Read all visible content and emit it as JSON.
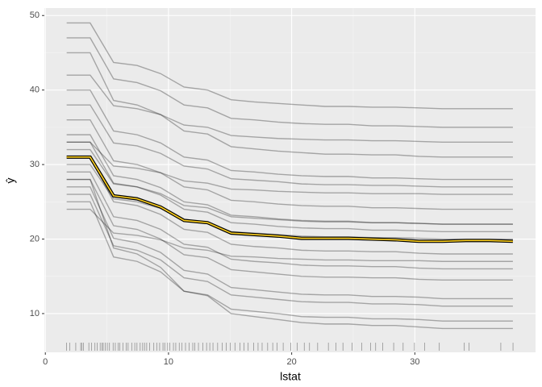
{
  "chart_data": {
    "type": "line",
    "x_label": "lstat",
    "y_label": "ŷ",
    "xlim": [
      -0.08,
      39.8
    ],
    "ylim": [
      4.8,
      51
    ],
    "xticks": [
      0,
      10,
      20,
      30
    ],
    "yticks": [
      10,
      20,
      30,
      40,
      50
    ],
    "grid": true,
    "line_color": "#000000",
    "x": [
      1.73,
      3.64,
      5.54,
      7.45,
      9.36,
      11.26,
      13.17,
      15.08,
      16.98,
      18.89,
      20.8,
      22.71,
      24.61,
      26.52,
      28.43,
      30.33,
      32.24,
      34.15,
      36.05,
      37.96
    ],
    "series": [
      {
        "values": [
          49,
          49,
          43.7,
          43.3,
          42.2,
          40.4,
          40.0,
          38.7,
          38.4,
          38.2,
          38.0,
          37.8,
          37.8,
          37.7,
          37.7,
          37.6,
          37.5,
          37.5,
          37.5,
          37.5
        ]
      },
      {
        "values": [
          47,
          47,
          41.5,
          41,
          39.9,
          38,
          37.6,
          36.2,
          36,
          35.7,
          35.5,
          35.4,
          35.4,
          35.2,
          35.2,
          35.1,
          35,
          35,
          35,
          35
        ]
      },
      {
        "values": [
          45,
          45,
          38.6,
          38,
          36.7,
          34.5,
          34.1,
          32.4,
          32.1,
          31.8,
          31.6,
          31.4,
          31.4,
          31.3,
          31.3,
          31.1,
          31,
          31,
          31,
          31
        ]
      },
      {
        "values": [
          42,
          42,
          37.9,
          37.5,
          36.7,
          35.3,
          35,
          33.9,
          33.7,
          33.5,
          33.4,
          33.3,
          33.3,
          33.2,
          33.2,
          33.1,
          33,
          33,
          33,
          33
        ]
      },
      {
        "values": [
          40,
          40,
          34.5,
          34,
          32.9,
          31,
          30.6,
          29.2,
          29,
          28.7,
          28.5,
          28.4,
          28.4,
          28.2,
          28.2,
          28.1,
          28,
          28,
          28,
          28
        ]
      },
      {
        "values": [
          38,
          38,
          32.9,
          32.5,
          31.5,
          29.8,
          29.4,
          28.1,
          27.9,
          27.7,
          27.4,
          27.3,
          27.3,
          27.2,
          27.2,
          27.1,
          27,
          27,
          27,
          27
        ]
      },
      {
        "values": [
          36,
          36,
          30.5,
          30,
          28.9,
          27,
          26.6,
          25.2,
          25,
          24.7,
          24.5,
          24.4,
          24.4,
          24.2,
          24.2,
          24.1,
          24,
          24,
          24,
          24
        ]
      },
      {
        "values": [
          34,
          34,
          28.5,
          28,
          26.9,
          25,
          24.6,
          23.2,
          23,
          22.7,
          22.5,
          22.4,
          22.4,
          22.2,
          22.2,
          22.1,
          22,
          22,
          22,
          22
        ]
      },
      {
        "values": [
          33,
          33,
          27.5,
          27,
          25.9,
          24,
          23.6,
          22.2,
          22,
          21.7,
          21.5,
          21.4,
          21.4,
          21.2,
          21.2,
          21.1,
          21,
          21,
          21,
          21
        ]
      },
      {
        "values": [
          32,
          32,
          27.4,
          27,
          26.1,
          24.5,
          24.2,
          23,
          22.8,
          22.6,
          22.4,
          22.3,
          22.3,
          22.2,
          22.2,
          22.1,
          22,
          22,
          22,
          22
        ]
      },
      {
        "values": [
          31,
          31,
          25,
          24.5,
          23.3,
          21.3,
          20.9,
          19.3,
          19,
          18.8,
          18.5,
          18.4,
          18.4,
          18.3,
          18.3,
          18.1,
          18,
          18,
          18,
          18
        ]
      },
      {
        "values": [
          30,
          30,
          25.4,
          25,
          24.1,
          22.5,
          22.2,
          21,
          20.8,
          20.6,
          20.4,
          20.3,
          20.3,
          20.2,
          20.2,
          20.1,
          20,
          20,
          20,
          20
        ]
      },
      {
        "values": [
          29,
          29,
          23,
          22.5,
          21.3,
          19.3,
          18.9,
          17.3,
          17,
          16.8,
          16.5,
          16.4,
          16.4,
          16.3,
          16.3,
          16.1,
          16,
          16,
          16,
          16
        ]
      },
      {
        "values": [
          28,
          28,
          21.8,
          21.3,
          20,
          17.9,
          17.5,
          15.9,
          15.6,
          15.3,
          15,
          14.9,
          14.9,
          14.8,
          14.8,
          14.6,
          14.5,
          14.5,
          14.5,
          14.5
        ]
      },
      {
        "values": [
          27,
          27,
          20.1,
          19.5,
          18.2,
          15.8,
          15.3,
          13.5,
          13.2,
          12.9,
          12.6,
          12.5,
          12.5,
          12.3,
          12.3,
          12.2,
          12,
          12,
          12,
          12
        ]
      },
      {
        "values": [
          26,
          26,
          19.1,
          18.5,
          17.2,
          14.8,
          14.3,
          12.5,
          12.2,
          11.9,
          11.6,
          11.5,
          11.5,
          11.3,
          11.3,
          11.2,
          11,
          11,
          11,
          11
        ]
      },
      {
        "values": [
          25,
          25,
          17.6,
          17,
          15.6,
          13,
          12.5,
          10.6,
          10.3,
          10,
          9.6,
          9.5,
          9.5,
          9.3,
          9.3,
          9.2,
          9,
          9,
          9,
          9
        ]
      },
      {
        "values": [
          28,
          28,
          18.8,
          18,
          16.2,
          13,
          12.4,
          10,
          9.6,
          9.2,
          8.8,
          8.6,
          8.6,
          8.4,
          8.4,
          8.2,
          8,
          8,
          8,
          8
        ]
      },
      {
        "values": [
          24,
          24,
          20.8,
          20.5,
          19.9,
          18.8,
          18.5,
          17.7,
          17.6,
          17.4,
          17.3,
          17.2,
          17.2,
          17.1,
          17.1,
          17.1,
          17,
          17,
          17,
          17
        ]
      },
      {
        "values": [
          33,
          33,
          29.8,
          29.5,
          28.9,
          27.8,
          27.5,
          26.7,
          26.6,
          26.4,
          26.3,
          26.2,
          26.2,
          26.1,
          26.1,
          26.1,
          26,
          26,
          26,
          26
        ]
      }
    ],
    "average": {
      "color": "#FFD21F",
      "values": [
        31,
        31,
        25.8,
        25.4,
        24.3,
        22.5,
        22.2,
        20.8,
        20.6,
        20.4,
        20.1,
        20.1,
        20.1,
        20.0,
        19.9,
        19.7,
        19.7,
        19.8,
        19.8,
        19.7
      ]
    },
    "rug": [
      1.73,
      1.98,
      2.47,
      2.87,
      2.96,
      3.11,
      3.53,
      3.76,
      4.03,
      4.21,
      4.45,
      4.59,
      4.7,
      4.85,
      5.03,
      5.21,
      5.5,
      5.68,
      5.9,
      6.05,
      6.29,
      6.58,
      6.72,
      7.01,
      7.26,
      7.44,
      7.7,
      7.9,
      8.05,
      8.23,
      8.47,
      8.81,
      9.04,
      9.28,
      9.55,
      9.69,
      9.93,
      10.11,
      10.4,
      10.59,
      10.87,
      11.1,
      11.38,
      11.66,
      11.97,
      12.13,
      12.43,
      12.8,
      13.09,
      13.35,
      13.61,
      13.99,
      14.37,
      14.69,
      15.02,
      15.39,
      15.79,
      16.14,
      16.47,
      16.9,
      17.27,
      17.6,
      18.05,
      18.46,
      18.8,
      19.31,
      19.92,
      20.45,
      21.02,
      21.45,
      22.11,
      22.98,
      23.6,
      24.16,
      24.91,
      25.68,
      26.42,
      26.82,
      27.38,
      28.28,
      29.05,
      29.97,
      30.81,
      31.99,
      34.02,
      34.41,
      36.98,
      37.97
    ]
  }
}
